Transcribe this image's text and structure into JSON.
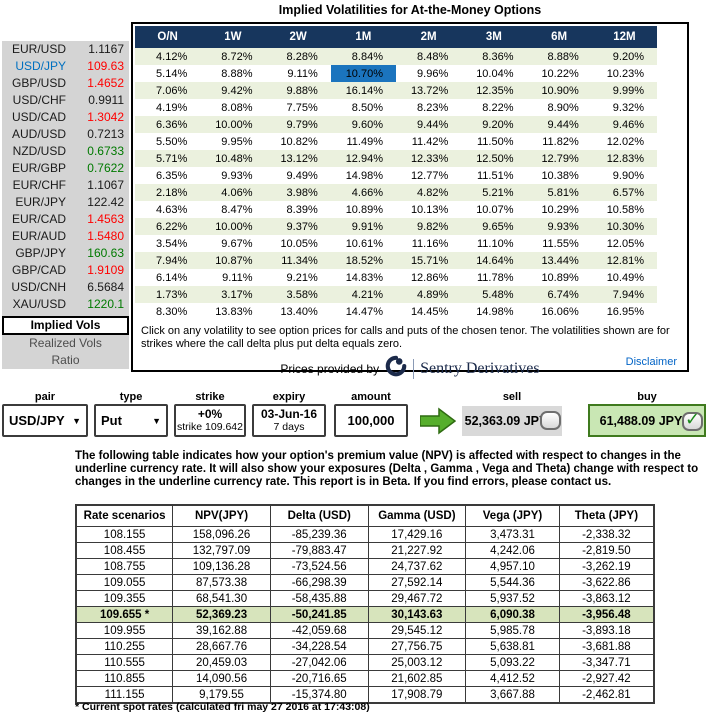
{
  "title": "Implied Volatilities for At-the-Money Options",
  "colors": {
    "header_navy": "#17365D",
    "row_green": "#EBF1DE",
    "selected_cell_blue": "#1B74BE",
    "sidebar_gray": "#D4D4D4",
    "buy_bg": "#C9E7B4",
    "buy_border": "#3F7A1E",
    "arrow_green": "#56AE2C",
    "highlight_row_green": "#D7E4BC",
    "link_blue": "#0063C6",
    "text_map": {
      "black": "#1a1a1a",
      "red": "#FF0000",
      "green": "#007A00",
      "blue": "#0070C0"
    }
  },
  "vol_panel": {
    "tenors": [
      "O/N",
      "1W",
      "2W",
      "1M",
      "2M",
      "3M",
      "6M",
      "12M"
    ],
    "selected": {
      "pair": "USD/JPY",
      "tenor": "1M",
      "value": "10.70%",
      "row_index": 1,
      "col_index": 3
    },
    "rows": [
      {
        "pair": "EUR/USD",
        "pair_color": "black",
        "spot": "1.1167",
        "spot_color": "black",
        "vols": [
          "4.12%",
          "8.72%",
          "8.28%",
          "8.84%",
          "8.48%",
          "8.36%",
          "8.88%",
          "9.20%"
        ]
      },
      {
        "pair": "USD/JPY",
        "pair_color": "blue",
        "spot": "109.63",
        "spot_color": "red",
        "vols": [
          "5.14%",
          "8.88%",
          "9.11%",
          "10.70%",
          "9.96%",
          "10.04%",
          "10.22%",
          "10.23%"
        ]
      },
      {
        "pair": "GBP/USD",
        "pair_color": "black",
        "spot": "1.4652",
        "spot_color": "red",
        "vols": [
          "7.06%",
          "9.42%",
          "9.88%",
          "16.14%",
          "13.72%",
          "12.35%",
          "10.90%",
          "9.99%"
        ]
      },
      {
        "pair": "USD/CHF",
        "pair_color": "black",
        "spot": "0.9911",
        "spot_color": "black",
        "vols": [
          "4.19%",
          "8.08%",
          "7.75%",
          "8.50%",
          "8.23%",
          "8.22%",
          "8.90%",
          "9.32%"
        ]
      },
      {
        "pair": "USD/CAD",
        "pair_color": "black",
        "spot": "1.3042",
        "spot_color": "red",
        "vols": [
          "6.36%",
          "10.00%",
          "9.79%",
          "9.60%",
          "9.44%",
          "9.20%",
          "9.44%",
          "9.46%"
        ]
      },
      {
        "pair": "AUD/USD",
        "pair_color": "black",
        "spot": "0.7213",
        "spot_color": "black",
        "vols": [
          "5.50%",
          "9.95%",
          "10.82%",
          "11.49%",
          "11.42%",
          "11.50%",
          "11.82%",
          "12.02%"
        ]
      },
      {
        "pair": "NZD/USD",
        "pair_color": "black",
        "spot": "0.6733",
        "spot_color": "green",
        "vols": [
          "5.71%",
          "10.48%",
          "13.12%",
          "12.94%",
          "12.33%",
          "12.50%",
          "12.79%",
          "12.83%"
        ]
      },
      {
        "pair": "EUR/GBP",
        "pair_color": "black",
        "spot": "0.7622",
        "spot_color": "green",
        "vols": [
          "6.35%",
          "9.93%",
          "9.49%",
          "14.98%",
          "12.77%",
          "11.51%",
          "10.38%",
          "9.90%"
        ]
      },
      {
        "pair": "EUR/CHF",
        "pair_color": "black",
        "spot": "1.1067",
        "spot_color": "black",
        "vols": [
          "2.18%",
          "4.06%",
          "3.98%",
          "4.66%",
          "4.82%",
          "5.21%",
          "5.81%",
          "6.57%"
        ]
      },
      {
        "pair": "EUR/JPY",
        "pair_color": "black",
        "spot": "122.42",
        "spot_color": "black",
        "vols": [
          "4.63%",
          "8.47%",
          "8.39%",
          "10.89%",
          "10.13%",
          "10.07%",
          "10.29%",
          "10.58%"
        ]
      },
      {
        "pair": "EUR/CAD",
        "pair_color": "black",
        "spot": "1.4563",
        "spot_color": "red",
        "vols": [
          "6.22%",
          "10.00%",
          "9.37%",
          "9.91%",
          "9.82%",
          "9.65%",
          "9.93%",
          "10.30%"
        ]
      },
      {
        "pair": "EUR/AUD",
        "pair_color": "black",
        "spot": "1.5480",
        "spot_color": "red",
        "vols": [
          "3.54%",
          "9.67%",
          "10.05%",
          "10.61%",
          "11.16%",
          "11.10%",
          "11.55%",
          "12.05%"
        ]
      },
      {
        "pair": "GBP/JPY",
        "pair_color": "black",
        "spot": "160.63",
        "spot_color": "green",
        "vols": [
          "7.94%",
          "10.87%",
          "11.34%",
          "18.52%",
          "15.71%",
          "14.64%",
          "13.44%",
          "12.81%"
        ]
      },
      {
        "pair": "GBP/CAD",
        "pair_color": "black",
        "spot": "1.9109",
        "spot_color": "red",
        "vols": [
          "6.14%",
          "9.11%",
          "9.21%",
          "14.83%",
          "12.86%",
          "11.78%",
          "10.89%",
          "10.49%"
        ]
      },
      {
        "pair": "USD/CNH",
        "pair_color": "black",
        "spot": "6.5684",
        "spot_color": "black",
        "vols": [
          "1.73%",
          "3.17%",
          "3.58%",
          "4.21%",
          "4.89%",
          "5.48%",
          "6.74%",
          "7.94%"
        ]
      },
      {
        "pair": "XAU/USD",
        "pair_color": "black",
        "spot": "1220.1",
        "spot_color": "green",
        "vols": [
          "8.30%",
          "13.83%",
          "13.40%",
          "14.47%",
          "14.45%",
          "14.98%",
          "16.06%",
          "16.95%"
        ]
      }
    ],
    "note": "Click on any volatility to see option prices for calls and puts of the chosen tenor. The volatilities shown are for strikes where the call delta plus put delta equals zero.",
    "provider_prefix": "Prices provided by",
    "provider_name": "Sentry Derivatives",
    "disclaimer_link": "Disclaimer"
  },
  "sidebar": {
    "tabs": [
      {
        "label": "Implied Vols",
        "active": true
      },
      {
        "label": "Realized Vols",
        "active": false
      },
      {
        "label": "Ratio",
        "active": false
      }
    ]
  },
  "ticket": {
    "pair_label": "pair",
    "pair_value": "USD/JPY",
    "type_label": "type",
    "type_value": "Put",
    "strike_label": "strike",
    "strike_line1": "+0%",
    "strike_line2": "strike 109.642",
    "expiry_label": "expiry",
    "expiry_line1": "03-Jun-16",
    "expiry_line2": "7 days",
    "amount_label": "amount",
    "amount_value": "100,000",
    "sell_label": "sell",
    "sell_value": "52,363.09 JPY",
    "buy_label": "buy",
    "buy_value": "61,488.09 JPY"
  },
  "description": "The following table indicates how your option's premium value (NPV) is affected with respect to changes in the underline currency rate. It will also show your exposures (Delta , Gamma , Vega and Theta) change with respect to changes in the underline currency rate. This report is in Beta. If you find errors, please contact us.",
  "greeks": {
    "headers": [
      "Rate scenarios",
      "NPV(JPY)",
      "Delta (USD)",
      "Gamma (USD)",
      "Vega (JPY)",
      "Theta (JPY)"
    ],
    "rows": [
      {
        "rate": "108.155",
        "npv": "158,096.26",
        "delta": "-85,239.36",
        "gamma": "17,429.16",
        "vega": "3,473.31",
        "theta": "-2,338.32"
      },
      {
        "rate": "108.455",
        "npv": "132,797.09",
        "delta": "-79,883.47",
        "gamma": "21,227.92",
        "vega": "4,242.06",
        "theta": "-2,819.50"
      },
      {
        "rate": "108.755",
        "npv": "109,136.28",
        "delta": "-73,524.56",
        "gamma": "24,737.62",
        "vega": "4,957.10",
        "theta": "-3,262.19"
      },
      {
        "rate": "109.055",
        "npv": "87,573.38",
        "delta": "-66,298.39",
        "gamma": "27,592.14",
        "vega": "5,544.36",
        "theta": "-3,622.86"
      },
      {
        "rate": "109.355",
        "npv": "68,541.30",
        "delta": "-58,435.88",
        "gamma": "29,467.72",
        "vega": "5,937.52",
        "theta": "-3,863.12"
      },
      {
        "rate": "109.655 *",
        "npv": "52,369.23",
        "delta": "-50,241.85",
        "gamma": "30,143.63",
        "vega": "6,090.38",
        "theta": "-3,956.48"
      },
      {
        "rate": "109.955",
        "npv": "39,162.88",
        "delta": "-42,059.68",
        "gamma": "29,545.12",
        "vega": "5,985.78",
        "theta": "-3,893.18"
      },
      {
        "rate": "110.255",
        "npv": "28,667.76",
        "delta": "-34,228.54",
        "gamma": "27,756.75",
        "vega": "5,638.81",
        "theta": "-3,681.88"
      },
      {
        "rate": "110.555",
        "npv": "20,459.03",
        "delta": "-27,042.06",
        "gamma": "25,003.12",
        "vega": "5,093.22",
        "theta": "-3,347.71"
      },
      {
        "rate": "110.855",
        "npv": "14,090.56",
        "delta": "-20,716.65",
        "gamma": "21,602.85",
        "vega": "4,412.52",
        "theta": "-2,927.42"
      },
      {
        "rate": "111.155",
        "npv": "9,179.55",
        "delta": "-15,374.80",
        "gamma": "17,908.79",
        "vega": "3,667.88",
        "theta": "-2,462.81"
      }
    ],
    "highlight_row_index": 5,
    "footnote": "* Current spot rates (calculated fri may 27 2016 at 17:43:08)"
  }
}
